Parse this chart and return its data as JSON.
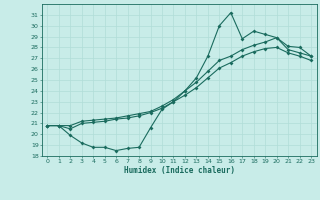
{
  "xlabel": "Humidex (Indice chaleur)",
  "bg_color": "#c8ece8",
  "line_color": "#1a6b5e",
  "grid_color": "#b0ddd8",
  "xlim": [
    -0.5,
    23.5
  ],
  "ylim": [
    18,
    32
  ],
  "yticks": [
    18,
    19,
    20,
    21,
    22,
    23,
    24,
    25,
    26,
    27,
    28,
    29,
    30,
    31
  ],
  "xticks": [
    0,
    1,
    2,
    3,
    4,
    5,
    6,
    7,
    8,
    9,
    10,
    11,
    12,
    13,
    14,
    15,
    16,
    17,
    18,
    19,
    20,
    21,
    22,
    23
  ],
  "line1_x": [
    0,
    1,
    2,
    3,
    4,
    5,
    6,
    7,
    8,
    9,
    10,
    11,
    12,
    13,
    14,
    15,
    16,
    17,
    18,
    19,
    20,
    21,
    22,
    23
  ],
  "line1_y": [
    20.8,
    20.8,
    19.9,
    19.2,
    18.8,
    18.8,
    18.5,
    18.7,
    18.8,
    20.6,
    22.3,
    23.0,
    24.0,
    25.2,
    27.2,
    30.0,
    31.2,
    28.8,
    29.5,
    29.2,
    28.9,
    28.1,
    28.0,
    27.2
  ],
  "line2_x": [
    0,
    1,
    2,
    3,
    4,
    5,
    6,
    7,
    8,
    9,
    10,
    11,
    12,
    13,
    14,
    15,
    16,
    17,
    18,
    19,
    20,
    21,
    22,
    23
  ],
  "line2_y": [
    20.8,
    20.8,
    20.8,
    21.2,
    21.3,
    21.4,
    21.5,
    21.7,
    21.9,
    22.1,
    22.6,
    23.2,
    24.0,
    24.8,
    25.8,
    26.8,
    27.2,
    27.8,
    28.2,
    28.5,
    28.9,
    27.8,
    27.5,
    27.2
  ],
  "line3_x": [
    0,
    1,
    2,
    3,
    4,
    5,
    6,
    7,
    8,
    9,
    10,
    11,
    12,
    13,
    14,
    15,
    16,
    17,
    18,
    19,
    20,
    21,
    22,
    23
  ],
  "line3_y": [
    20.8,
    20.8,
    20.5,
    21.0,
    21.1,
    21.2,
    21.4,
    21.5,
    21.7,
    22.0,
    22.4,
    23.0,
    23.6,
    24.3,
    25.2,
    26.1,
    26.6,
    27.2,
    27.6,
    27.9,
    28.0,
    27.5,
    27.2,
    26.8
  ]
}
